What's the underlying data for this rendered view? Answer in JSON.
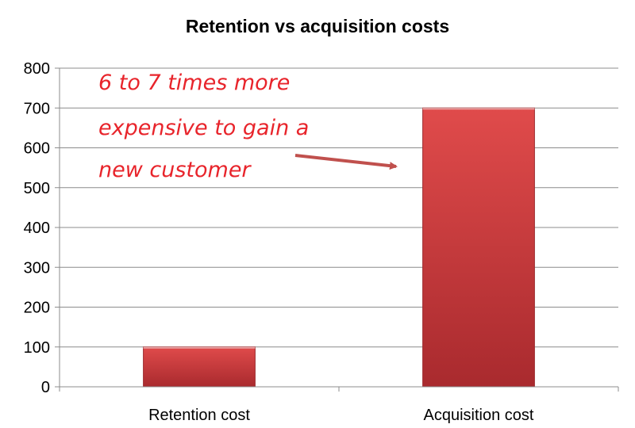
{
  "chart_data": {
    "type": "bar",
    "title": "Retention vs acquisition costs",
    "categories": [
      "Retention cost",
      "Acquisition cost"
    ],
    "values": [
      100,
      700
    ],
    "ylim": [
      0,
      800
    ],
    "yticks": [
      0,
      100,
      200,
      300,
      400,
      500,
      600,
      700,
      800
    ],
    "grid": true,
    "legend": "none",
    "bar_color": "#c8373b",
    "annotation": {
      "lines": [
        "6 to 7 times more",
        "expensive to gain a",
        "new customer"
      ],
      "color": "#e8242b"
    }
  }
}
